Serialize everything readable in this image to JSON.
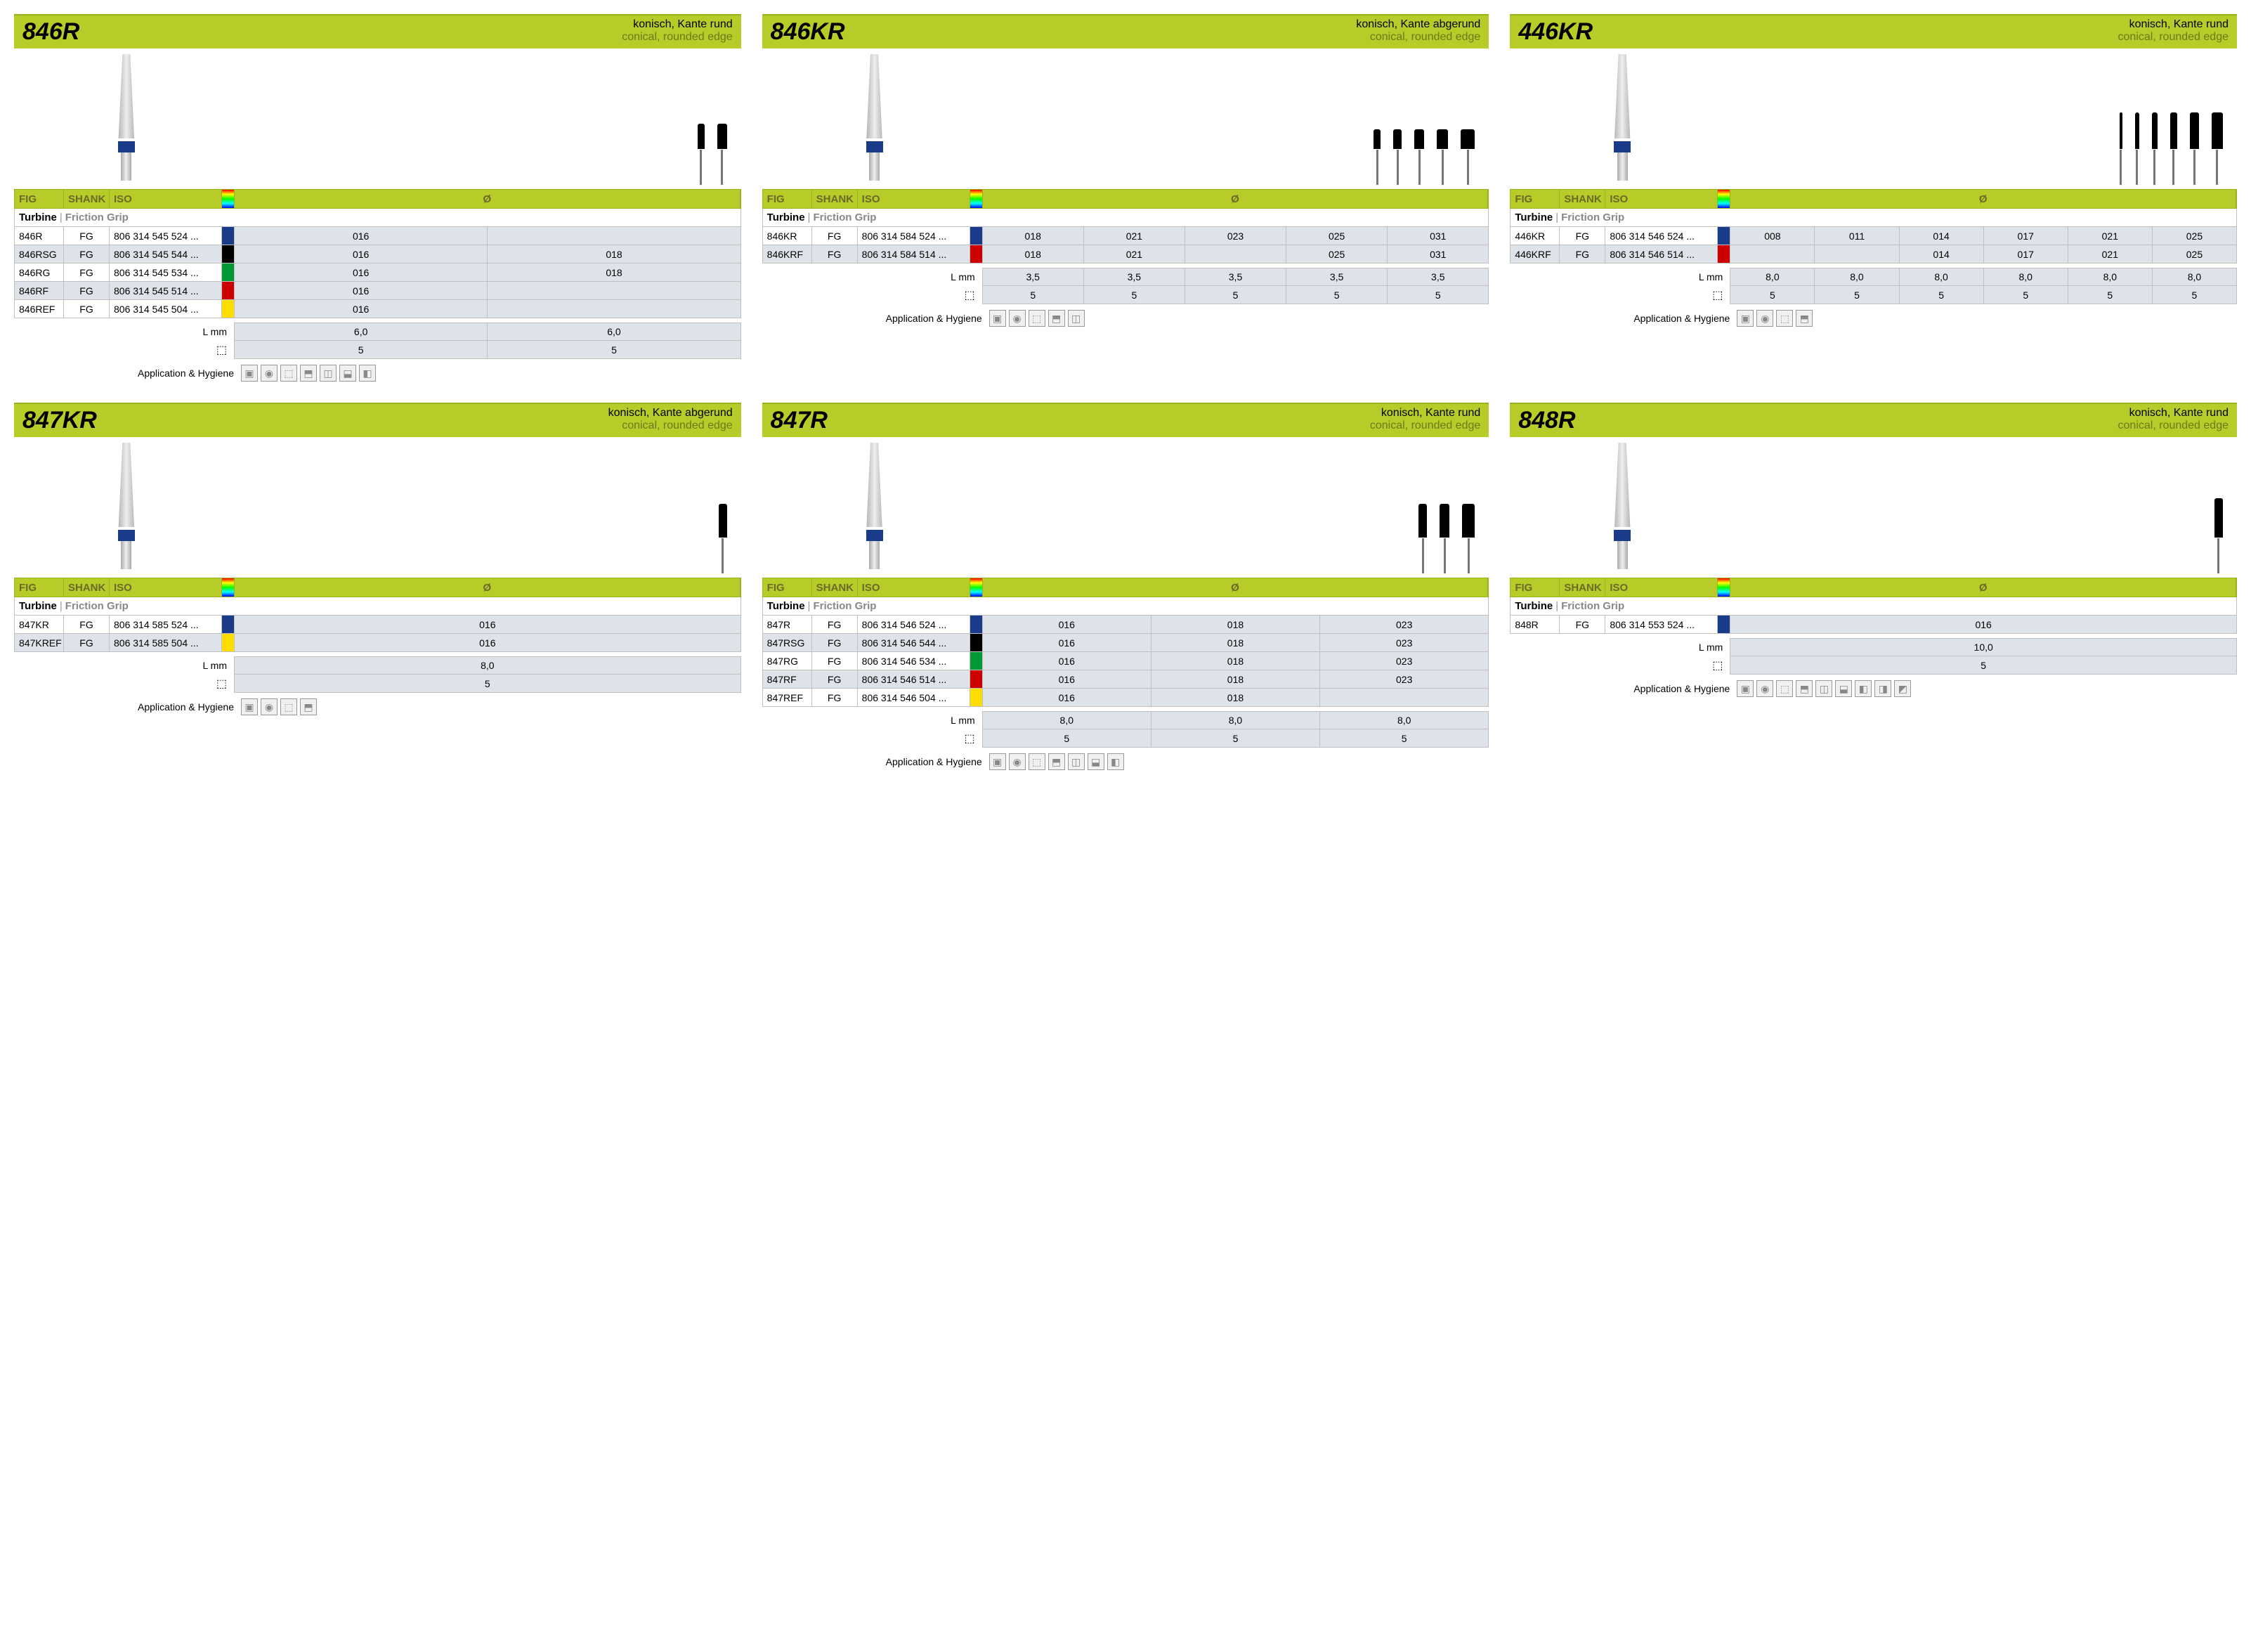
{
  "labels": {
    "fig": "FIG",
    "shank": "SHANK",
    "iso": "ISO",
    "diameter": "Ø",
    "turbine": "Turbine",
    "friction_grip": "Friction Grip",
    "l_mm": "L mm",
    "app_hygiene": "Application & Hygiene"
  },
  "colors": {
    "header_bg": "#b8cc29",
    "header_border": "#9ab31c",
    "band_blue": "#1a3a8a",
    "band_black": "#000000",
    "band_green": "#009933",
    "band_red": "#cc0000",
    "band_yellow": "#ffdd00",
    "row_alt": "#dde3e9",
    "text_grey": "#888888"
  },
  "cards": [
    {
      "id": "846R",
      "desc_de": "konisch, Kante rund",
      "desc_en": "conical, rounded edge",
      "mini_count": 2,
      "mini_widths": [
        10,
        14
      ],
      "mini_heights": [
        36,
        36
      ],
      "diam_count": 2,
      "rows": [
        {
          "fig": "846R",
          "shank": "FG",
          "iso": "806 314 545 524 ...",
          "color": "#1a3a8a",
          "diams": [
            "016",
            ""
          ]
        },
        {
          "fig": "846RSG",
          "shank": "FG",
          "iso": "806 314 545 544 ...",
          "color": "#000000",
          "diams": [
            "016",
            "018"
          ]
        },
        {
          "fig": "846RG",
          "shank": "FG",
          "iso": "806 314 545 534 ...",
          "color": "#009933",
          "diams": [
            "016",
            "018"
          ]
        },
        {
          "fig": "846RF",
          "shank": "FG",
          "iso": "806 314 545 514 ...",
          "color": "#cc0000",
          "diams": [
            "016",
            ""
          ]
        },
        {
          "fig": "846REF",
          "shank": "FG",
          "iso": "806 314 545 504 ...",
          "color": "#ffdd00",
          "diams": [
            "016",
            ""
          ]
        }
      ],
      "l_mm": [
        "6,0",
        "6,0"
      ],
      "qty": [
        "5",
        "5"
      ],
      "icons": 7
    },
    {
      "id": "846KR",
      "desc_de": "konisch, Kante abgerund",
      "desc_en": "conical, rounded edge",
      "mini_count": 5,
      "mini_widths": [
        10,
        12,
        14,
        16,
        20
      ],
      "mini_heights": [
        28,
        28,
        28,
        28,
        28
      ],
      "diam_count": 5,
      "rows": [
        {
          "fig": "846KR",
          "shank": "FG",
          "iso": "806 314 584 524 ...",
          "color": "#1a3a8a",
          "diams": [
            "018",
            "021",
            "023",
            "025",
            "031"
          ]
        },
        {
          "fig": "846KRF",
          "shank": "FG",
          "iso": "806 314 584 514 ...",
          "color": "#cc0000",
          "diams": [
            "018",
            "021",
            "",
            "025",
            "031"
          ]
        }
      ],
      "l_mm": [
        "3,5",
        "3,5",
        "3,5",
        "3,5",
        "3,5"
      ],
      "qty": [
        "5",
        "5",
        "5",
        "5",
        "5"
      ],
      "icons": 5
    },
    {
      "id": "446KR",
      "desc_de": "konisch, Kante rund",
      "desc_en": "conical, rounded edge",
      "mini_count": 6,
      "mini_widths": [
        4,
        6,
        8,
        10,
        13,
        16
      ],
      "mini_heights": [
        52,
        52,
        52,
        52,
        52,
        52
      ],
      "diam_count": 6,
      "rows": [
        {
          "fig": "446KR",
          "shank": "FG",
          "iso": "806 314 546 524 ...",
          "color": "#1a3a8a",
          "diams": [
            "008",
            "011",
            "014",
            "017",
            "021",
            "025"
          ]
        },
        {
          "fig": "446KRF",
          "shank": "FG",
          "iso": "806 314 546 514 ...",
          "color": "#cc0000",
          "diams": [
            "",
            "",
            "014",
            "017",
            "021",
            "025"
          ]
        }
      ],
      "l_mm": [
        "8,0",
        "8,0",
        "8,0",
        "8,0",
        "8,0",
        "8,0"
      ],
      "qty": [
        "5",
        "5",
        "5",
        "5",
        "5",
        "5"
      ],
      "icons": 4
    },
    {
      "id": "847KR",
      "desc_de": "konisch, Kante abgerund",
      "desc_en": "conical, rounded edge",
      "mini_count": 1,
      "mini_widths": [
        12
      ],
      "mini_heights": [
        48
      ],
      "diam_count": 1,
      "rows": [
        {
          "fig": "847KR",
          "shank": "FG",
          "iso": "806 314 585 524 ...",
          "color": "#1a3a8a",
          "diams": [
            "016"
          ]
        },
        {
          "fig": "847KREF",
          "shank": "FG",
          "iso": "806 314 585 504 ...",
          "color": "#ffdd00",
          "diams": [
            "016"
          ]
        }
      ],
      "l_mm": [
        "8,0"
      ],
      "qty": [
        "5"
      ],
      "icons": 4
    },
    {
      "id": "847R",
      "desc_de": "konisch, Kante rund",
      "desc_en": "conical, rounded edge",
      "mini_count": 3,
      "mini_widths": [
        12,
        14,
        18
      ],
      "mini_heights": [
        48,
        48,
        48
      ],
      "diam_count": 3,
      "rows": [
        {
          "fig": "847R",
          "shank": "FG",
          "iso": "806 314 546 524 ...",
          "color": "#1a3a8a",
          "diams": [
            "016",
            "018",
            "023"
          ]
        },
        {
          "fig": "847RSG",
          "shank": "FG",
          "iso": "806 314 546 544 ...",
          "color": "#000000",
          "diams": [
            "016",
            "018",
            "023"
          ]
        },
        {
          "fig": "847RG",
          "shank": "FG",
          "iso": "806 314 546 534 ...",
          "color": "#009933",
          "diams": [
            "016",
            "018",
            "023"
          ]
        },
        {
          "fig": "847RF",
          "shank": "FG",
          "iso": "806 314 546 514 ...",
          "color": "#cc0000",
          "diams": [
            "016",
            "018",
            "023"
          ]
        },
        {
          "fig": "847REF",
          "shank": "FG",
          "iso": "806 314 546 504 ...",
          "color": "#ffdd00",
          "diams": [
            "016",
            "018",
            ""
          ]
        }
      ],
      "l_mm": [
        "8,0",
        "8,0",
        "8,0"
      ],
      "qty": [
        "5",
        "5",
        "5"
      ],
      "icons": 7
    },
    {
      "id": "848R",
      "desc_de": "konisch, Kante rund",
      "desc_en": "conical, rounded edge",
      "mini_count": 1,
      "mini_widths": [
        12
      ],
      "mini_heights": [
        56
      ],
      "diam_count": 1,
      "rows": [
        {
          "fig": "848R",
          "shank": "FG",
          "iso": "806 314 553 524 ...",
          "color": "#1a3a8a",
          "diams": [
            "016"
          ]
        }
      ],
      "l_mm": [
        "10,0"
      ],
      "qty": [
        "5"
      ],
      "icons": 9
    }
  ]
}
